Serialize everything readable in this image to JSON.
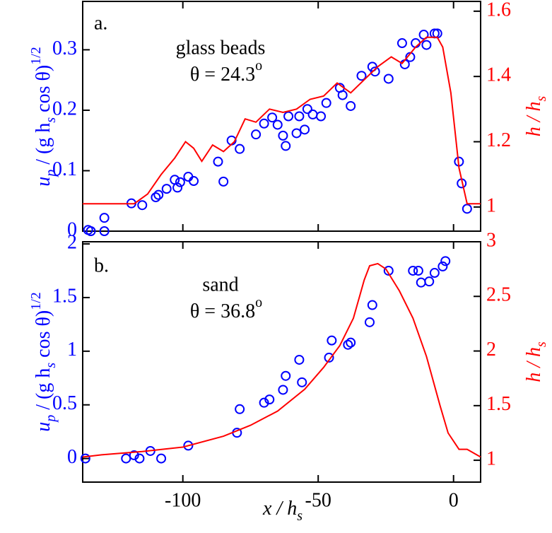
{
  "chart_data": [
    {
      "type": "combo",
      "panel_label": "a.",
      "annotation": "glass beads",
      "angle_label": "θ = 24.3",
      "angle_sup": "o",
      "ylabel": [
        "u",
        "p",
        " / (g h",
        "s",
        " cos θ)",
        "1/2"
      ],
      "y2label": [
        "h / h",
        "s"
      ],
      "xlim": [
        -137,
        10
      ],
      "ylim": [
        0,
        0.38
      ],
      "yticks": [
        0,
        0.1,
        0.2,
        0.3
      ],
      "y2lim": [
        0.926,
        1.63
      ],
      "y2ticks": [
        1,
        1.2,
        1.4,
        1.6
      ],
      "series": [
        {
          "type": "scatter",
          "color": "#0000ff",
          "x": [
            -135,
            -134,
            -129,
            -129,
            -119,
            -115,
            -110,
            -109,
            -106,
            -103,
            -102,
            -101,
            -98,
            -96,
            -87,
            -85,
            -82,
            -79,
            -73,
            -70,
            -67,
            -65,
            -63,
            -62,
            -61,
            -58,
            -57,
            -55,
            -54,
            -52,
            -49,
            -47,
            -42,
            -41,
            -38,
            -34,
            -30,
            -29,
            -24,
            -19,
            -18,
            -16,
            -14,
            -11,
            -10,
            -7,
            -6,
            2,
            3,
            5
          ],
          "values": [
            0.002,
            0,
            0.022,
            0,
            0.046,
            0.043,
            0.056,
            0.06,
            0.07,
            0.085,
            0.072,
            0.081,
            0.09,
            0.083,
            0.115,
            0.082,
            0.15,
            0.136,
            0.16,
            0.178,
            0.188,
            0.176,
            0.158,
            0.141,
            0.19,
            0.162,
            0.19,
            0.168,
            0.202,
            0.193,
            0.19,
            0.212,
            0.237,
            0.225,
            0.207,
            0.257,
            0.272,
            0.264,
            0.252,
            0.311,
            0.276,
            0.288,
            0.311,
            0.325,
            0.308,
            0.327,
            0.327,
            0.115,
            0.079,
            0.037
          ]
        },
        {
          "type": "line",
          "color": "#ff0000",
          "axis": "y2",
          "x": [
            -137,
            -118,
            -113,
            -108,
            -103,
            -99,
            -96,
            -93,
            -89,
            -85,
            -81,
            -77,
            -73,
            -68,
            -63,
            -58,
            -53,
            -48,
            -43,
            -38,
            -33,
            -28,
            -23,
            -19,
            -14,
            -10,
            -6,
            -4,
            -1,
            2,
            5,
            10
          ],
          "values": [
            1.01,
            1.01,
            1.04,
            1.1,
            1.15,
            1.2,
            1.18,
            1.14,
            1.19,
            1.17,
            1.2,
            1.27,
            1.26,
            1.3,
            1.29,
            1.3,
            1.33,
            1.34,
            1.38,
            1.35,
            1.39,
            1.43,
            1.46,
            1.44,
            1.49,
            1.52,
            1.52,
            1.49,
            1.35,
            1.12,
            1.01,
            1.01
          ]
        }
      ]
    },
    {
      "type": "combo",
      "panel_label": "b.",
      "annotation": "sand",
      "angle_label": "θ = 36.8",
      "angle_sup": "o",
      "ylabel": [
        "u",
        "p",
        " / (g h",
        "s",
        " cos θ)",
        "1/2"
      ],
      "y2label": [
        "h / h",
        "s"
      ],
      "xlabel": [
        "x / h",
        "s"
      ],
      "xlim": [
        -137,
        10
      ],
      "xticks": [
        -100,
        -50,
        0
      ],
      "ylim": [
        -0.22,
        2.02
      ],
      "yticks": [
        0,
        0.5,
        1,
        1.5,
        2
      ],
      "y2lim": [
        0.8,
        3
      ],
      "y2ticks": [
        1,
        1.5,
        2,
        2.5,
        3
      ],
      "series": [
        {
          "type": "scatter",
          "color": "#0000ff",
          "x": [
            -136,
            -121,
            -118,
            -116,
            -112,
            -108,
            -98,
            -80,
            -79,
            -70,
            -68,
            -63,
            -62,
            -57,
            -56,
            -46,
            -45,
            -39,
            -38,
            -31,
            -30,
            -24,
            -15,
            -13,
            -12,
            -9,
            -7,
            -4,
            -3
          ],
          "values": [
            0,
            0,
            0.03,
            0,
            0.07,
            0,
            0.12,
            0.24,
            0.46,
            0.52,
            0.55,
            0.64,
            0.77,
            0.92,
            0.71,
            0.94,
            1.1,
            1.06,
            1.08,
            1.27,
            1.43,
            1.75,
            1.75,
            1.75,
            1.64,
            1.65,
            1.73,
            1.79,
            1.84
          ]
        },
        {
          "type": "line",
          "color": "#ff0000",
          "axis": "y2",
          "x": [
            -137,
            -130,
            -115,
            -100,
            -85,
            -75,
            -65,
            -55,
            -48,
            -42,
            -37,
            -33,
            -31,
            -28,
            -25,
            -20,
            -15,
            -10,
            -5,
            -2,
            2,
            5,
            10
          ],
          "values": [
            1.03,
            1.05,
            1.08,
            1.12,
            1.22,
            1.32,
            1.45,
            1.65,
            1.85,
            2.05,
            2.3,
            2.65,
            2.78,
            2.8,
            2.75,
            2.55,
            2.3,
            1.95,
            1.5,
            1.25,
            1.1,
            1.1,
            1.03
          ]
        }
      ]
    }
  ]
}
